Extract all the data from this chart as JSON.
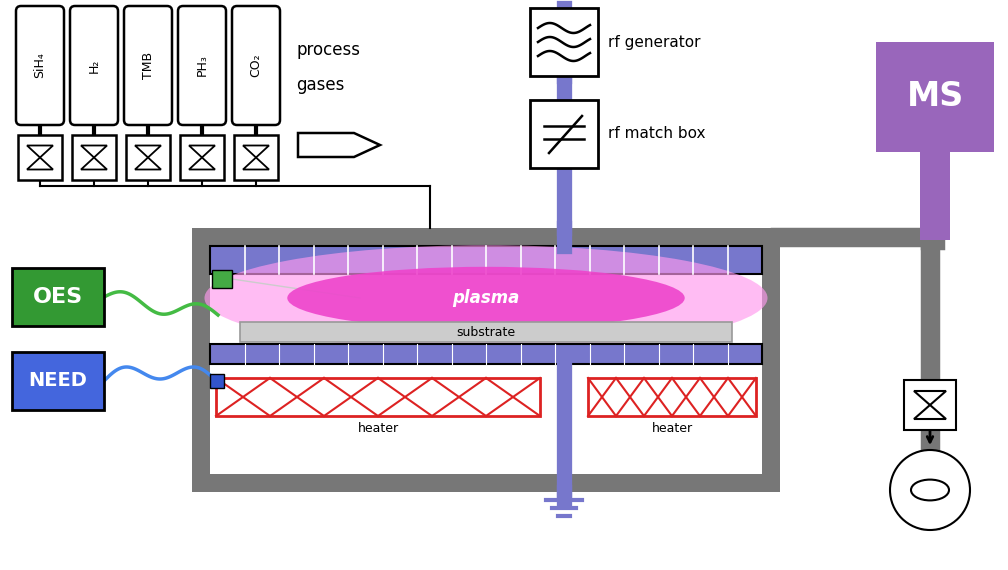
{
  "bg_color": "#ffffff",
  "gray_chamber": "#777777",
  "gray_inner": "#999999",
  "blue_elec": "#7777cc",
  "blue_line": "#6666bb",
  "purple_ms": "#9966bb",
  "purple_stem": "#aa88cc",
  "green_oes": "#339933",
  "blue_need": "#4466dd",
  "red_heater": "#dd2222",
  "plasma_pink": "#ee44cc",
  "plasma_light": "#ff99ee",
  "substrate_gray": "#cccccc",
  "gas_labels": [
    "SiH₄",
    "H₂",
    "TMB",
    "PH₃",
    "CO₂"
  ],
  "rf_generator_label": "rf generator",
  "rf_matchbox_label": "rf match box",
  "oes_label": "OES",
  "need_label": "NEED",
  "ms_label": "MS",
  "plasma_label": "plasma",
  "substrate_label": "substrate",
  "heater_label": "heater",
  "process_gas_1": "process",
  "process_gas_2": "gases"
}
